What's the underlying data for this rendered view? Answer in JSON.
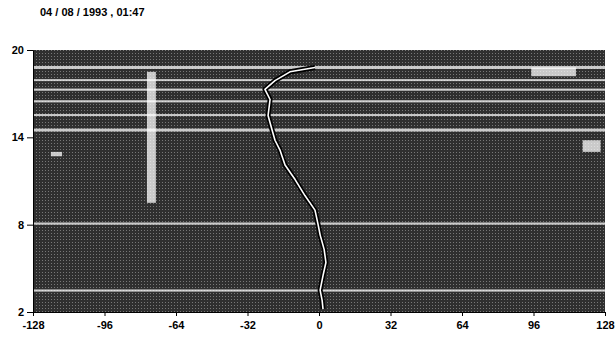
{
  "chart_data": {
    "type": "line",
    "title": "04 / 08 / 1993 , 01:47",
    "x": [
      1.8,
      1.4,
      0.5,
      1.8,
      3.1,
      2.3,
      0.5,
      -0.4,
      -1.8,
      -6.3,
      -10.7,
      -15.2,
      -17.4,
      -19.7,
      -21.0,
      -22.8,
      -21.9,
      -24.2,
      -19.7,
      -13.0,
      -1.8
    ],
    "values": [
      2.2,
      2.8,
      3.5,
      4.5,
      5.4,
      6.3,
      7.3,
      8.0,
      9.0,
      10.0,
      11.1,
      12.1,
      13.1,
      13.8,
      14.5,
      15.5,
      16.6,
      17.3,
      17.9,
      18.5,
      18.8
    ],
    "color": "#ffffff",
    "echoes": [
      {
        "x": [
          -128,
          128
        ],
        "y": [
          18.7,
          18.9
        ]
      },
      {
        "x": [
          -128,
          128
        ],
        "y": [
          17.9,
          18.0
        ]
      },
      {
        "x": [
          -128,
          128
        ],
        "y": [
          17.2,
          17.35
        ]
      },
      {
        "x": [
          -128,
          128
        ],
        "y": [
          16.4,
          16.55
        ]
      },
      {
        "x": [
          -128,
          128
        ],
        "y": [
          15.5,
          15.6
        ]
      },
      {
        "x": [
          -128,
          128
        ],
        "y": [
          14.4,
          14.6
        ]
      },
      {
        "x": [
          -128,
          128
        ],
        "y": [
          8.0,
          8.15
        ]
      },
      {
        "x": [
          -128,
          128
        ],
        "y": [
          3.4,
          3.55
        ]
      },
      {
        "x": [
          -77,
          -73
        ],
        "y": [
          9.5,
          18.5
        ]
      },
      {
        "x": [
          95,
          115
        ],
        "y": [
          18.2,
          18.8
        ]
      },
      {
        "x": [
          118,
          126
        ],
        "y": [
          13.0,
          13.8
        ]
      },
      {
        "x": [
          -120,
          -115
        ],
        "y": [
          12.7,
          13.0
        ]
      }
    ],
    "xlim": [
      -128,
      128
    ],
    "xticks": [
      -128,
      -96,
      -64,
      -32,
      0,
      32,
      64,
      96,
      128
    ],
    "ylim": [
      2,
      20
    ],
    "yticks": [
      2,
      8,
      14,
      20
    ]
  }
}
